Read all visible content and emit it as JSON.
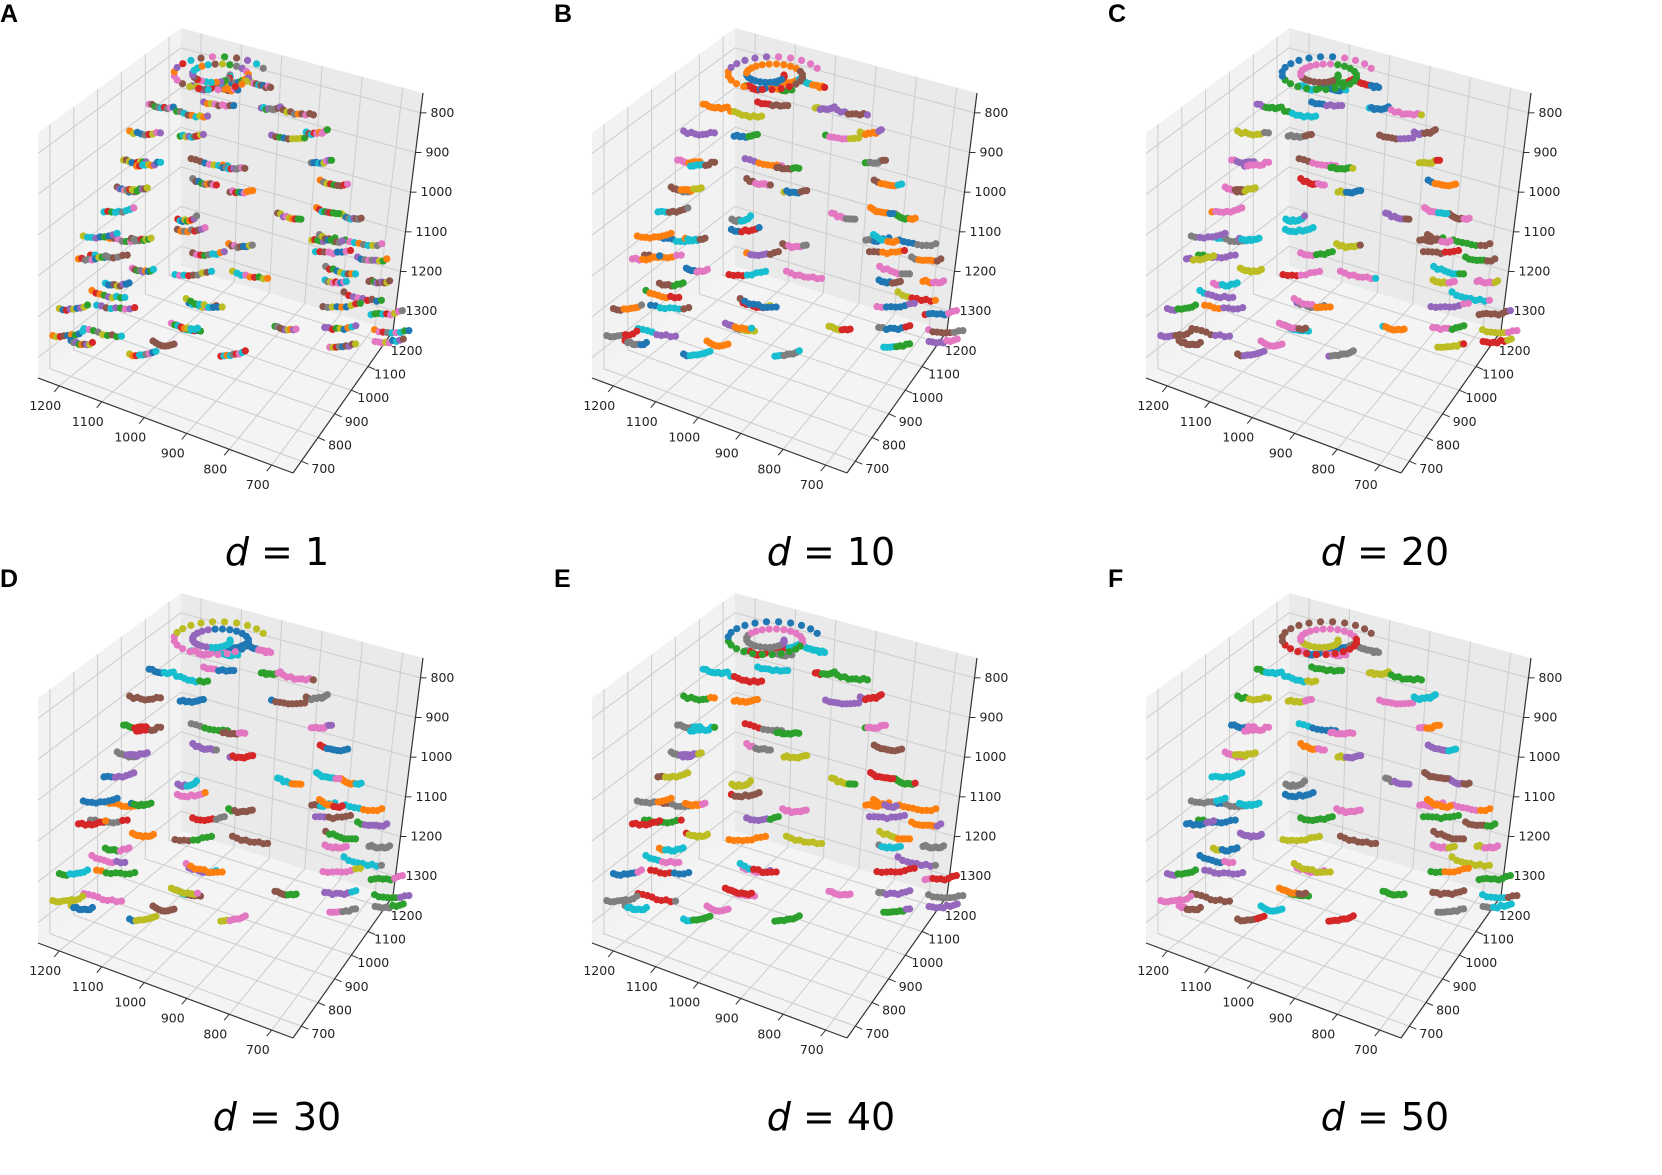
{
  "colors": [
    "#1f77b4",
    "#ff7f0e",
    "#2ca02c",
    "#d62728",
    "#9467bd",
    "#8c564b",
    "#e377c2",
    "#7f7f7f",
    "#bcbd22",
    "#17becf"
  ],
  "chart_data": [
    {
      "type": "scatter",
      "panel": "A",
      "caption_var": "d",
      "caption_eq": " = 1",
      "caption_value": 1,
      "x_ticks": [
        "1200",
        "1100",
        "1000",
        "900",
        "800",
        "700"
      ],
      "y_ticks": [
        "700",
        "800",
        "900",
        "1000",
        "1100",
        "1200"
      ],
      "z_ticks": [
        "800",
        "900",
        "1000",
        "1100",
        "1200",
        "1300"
      ]
    },
    {
      "type": "scatter",
      "panel": "B",
      "caption_var": "d",
      "caption_eq": " = 10",
      "caption_value": 10,
      "x_ticks": [
        "1200",
        "1100",
        "1000",
        "900",
        "800",
        "700"
      ],
      "y_ticks": [
        "700",
        "800",
        "900",
        "1000",
        "1100",
        "1200"
      ],
      "z_ticks": [
        "800",
        "900",
        "1000",
        "1100",
        "1200",
        "1300"
      ]
    },
    {
      "type": "scatter",
      "panel": "C",
      "caption_var": "d",
      "caption_eq": " = 20",
      "caption_value": 20,
      "x_ticks": [
        "1200",
        "1100",
        "1000",
        "900",
        "800",
        "700"
      ],
      "y_ticks": [
        "700",
        "800",
        "900",
        "1000",
        "1100",
        "1200"
      ],
      "z_ticks": [
        "800",
        "900",
        "1000",
        "1100",
        "1200",
        "1300"
      ]
    },
    {
      "type": "scatter",
      "panel": "D",
      "caption_var": "d",
      "caption_eq": " = 30",
      "caption_value": 30,
      "x_ticks": [
        "1200",
        "1100",
        "1000",
        "900",
        "800",
        "700"
      ],
      "y_ticks": [
        "700",
        "800",
        "900",
        "1000",
        "1100",
        "1200"
      ],
      "z_ticks": [
        "800",
        "900",
        "1000",
        "1100",
        "1200",
        "1300"
      ]
    },
    {
      "type": "scatter",
      "panel": "E",
      "caption_var": "d",
      "caption_eq": " = 40",
      "caption_value": 40,
      "x_ticks": [
        "1200",
        "1100",
        "1000",
        "900",
        "800",
        "700"
      ],
      "y_ticks": [
        "700",
        "800",
        "900",
        "1000",
        "1100",
        "1200"
      ],
      "z_ticks": [
        "800",
        "900",
        "1000",
        "1100",
        "1200",
        "1300"
      ]
    },
    {
      "type": "scatter",
      "panel": "F",
      "caption_var": "d",
      "caption_eq": " = 50",
      "caption_value": 50,
      "x_ticks": [
        "1200",
        "1100",
        "1000",
        "900",
        "800",
        "700"
      ],
      "y_ticks": [
        "700",
        "800",
        "900",
        "1000",
        "1100",
        "1200"
      ],
      "z_ticks": [
        "800",
        "900",
        "1000",
        "1100",
        "1200",
        "1300"
      ]
    }
  ]
}
